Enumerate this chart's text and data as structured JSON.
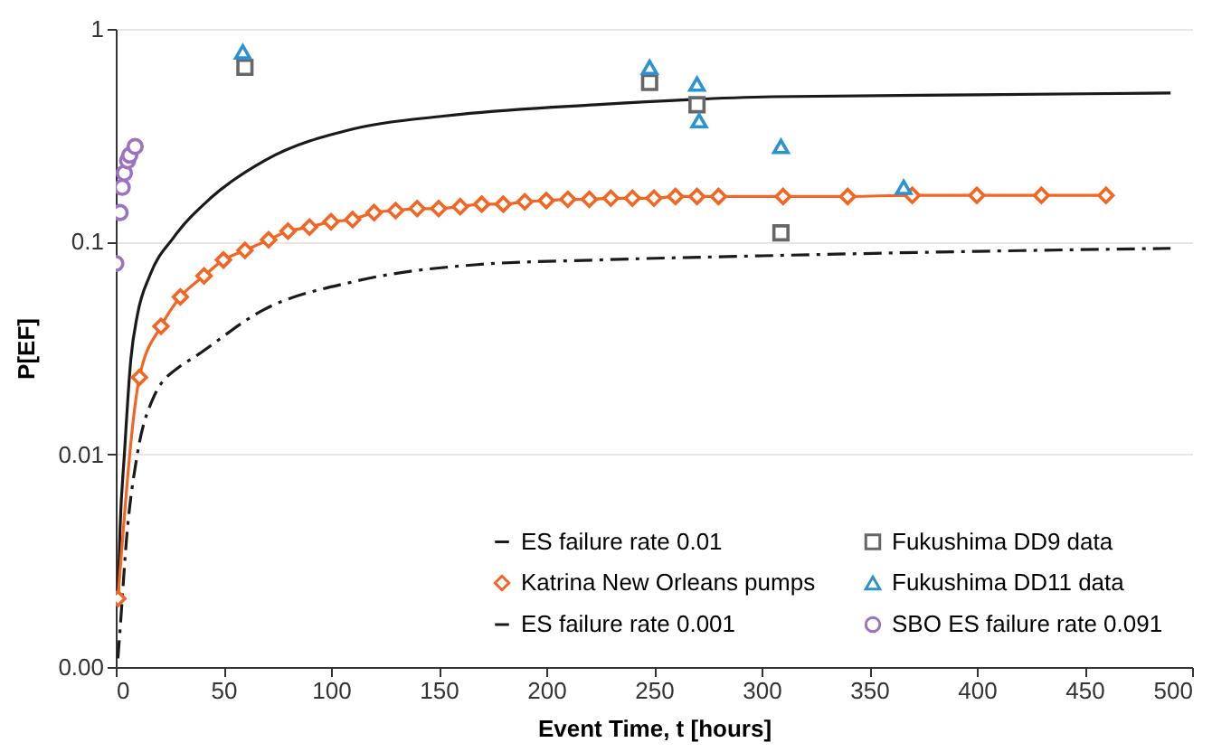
{
  "chart_data": {
    "type": "line",
    "xlabel": "Event Time, t [hours]",
    "ylabel": "P[EF]",
    "xlim": [
      0,
      500
    ],
    "xticks": [
      0,
      50,
      100,
      150,
      200,
      250,
      300,
      350,
      400,
      450,
      500
    ],
    "ylim": [
      0.001,
      1
    ],
    "yticks": [
      {
        "value": 0.001,
        "label": "0.00"
      },
      0.01,
      0.1,
      1
    ],
    "log": "y",
    "grid": "y",
    "legend": "bottom right",
    "series": [
      {
        "name": "ES failure rate 0.01",
        "type": "line",
        "color": "#1a1a1a",
        "line_style": "solid",
        "marker": "none",
        "x": [
          1,
          2,
          4,
          7,
          10,
          16,
          27,
          44,
          69,
          111,
          153,
          223,
          305,
          400,
          490
        ],
        "values": [
          0.002,
          0.0045,
          0.01,
          0.028,
          0.045,
          0.07,
          0.105,
          0.16,
          0.24,
          0.34,
          0.39,
          0.44,
          0.48,
          0.49,
          0.5
        ]
      },
      {
        "name": "Katrina New Orleans pumps",
        "type": "line",
        "color": "#f26522",
        "line_style": "solid",
        "marker": "diamond",
        "x": [
          1,
          11,
          21,
          30,
          41,
          50,
          60,
          71,
          80,
          90,
          100,
          110,
          120,
          130,
          140,
          150,
          160,
          170,
          180,
          190,
          200,
          210,
          220,
          230,
          240,
          250,
          260,
          270,
          280,
          310,
          340,
          370,
          400,
          430,
          460
        ],
        "values": [
          0.0021,
          0.023,
          0.04,
          0.055,
          0.069,
          0.082,
          0.091,
          0.102,
          0.112,
          0.117,
          0.124,
          0.127,
          0.137,
          0.14,
          0.143,
          0.143,
          0.146,
          0.15,
          0.15,
          0.154,
          0.156,
          0.158,
          0.158,
          0.16,
          0.16,
          0.16,
          0.163,
          0.163,
          0.163,
          0.163,
          0.163,
          0.165,
          0.165,
          0.165,
          0.165
        ]
      },
      {
        "name": "ES failure rate 0.001",
        "type": "line",
        "color": "#1a1a1a",
        "line_style": "dashdot",
        "marker": "none",
        "x": [
          1,
          2,
          5,
          10,
          17,
          30,
          35,
          69,
          111,
          168,
          224,
          305,
          400,
          490
        ],
        "values": [
          0.0011,
          0.0015,
          0.004,
          0.01,
          0.018,
          0.026,
          0.028,
          0.048,
          0.065,
          0.078,
          0.082,
          0.086,
          0.09,
          0.093
        ]
      },
      {
        "name": "Fukushima DD9 data",
        "type": "scatter",
        "color": "#666666",
        "marker": "square",
        "x": [
          60,
          248,
          270,
          309
        ],
        "values": [
          0.66,
          0.56,
          0.44,
          0.11
        ]
      },
      {
        "name": "Fukushima DD11 data",
        "type": "scatter",
        "color": "#2b93d1",
        "marker": "triangle",
        "x": [
          59,
          248,
          270,
          271,
          309,
          366
        ],
        "values": [
          0.78,
          0.66,
          0.55,
          0.37,
          0.28,
          0.18
        ]
      },
      {
        "name": "SBO ES failure rate 0.091",
        "type": "scatter",
        "color": "#9b72c4",
        "marker": "circle",
        "x": [
          0,
          2,
          3,
          4,
          5.5,
          6.5,
          9
        ],
        "values": [
          0.079,
          0.137,
          0.18,
          0.21,
          0.24,
          0.255,
          0.28
        ]
      }
    ]
  }
}
